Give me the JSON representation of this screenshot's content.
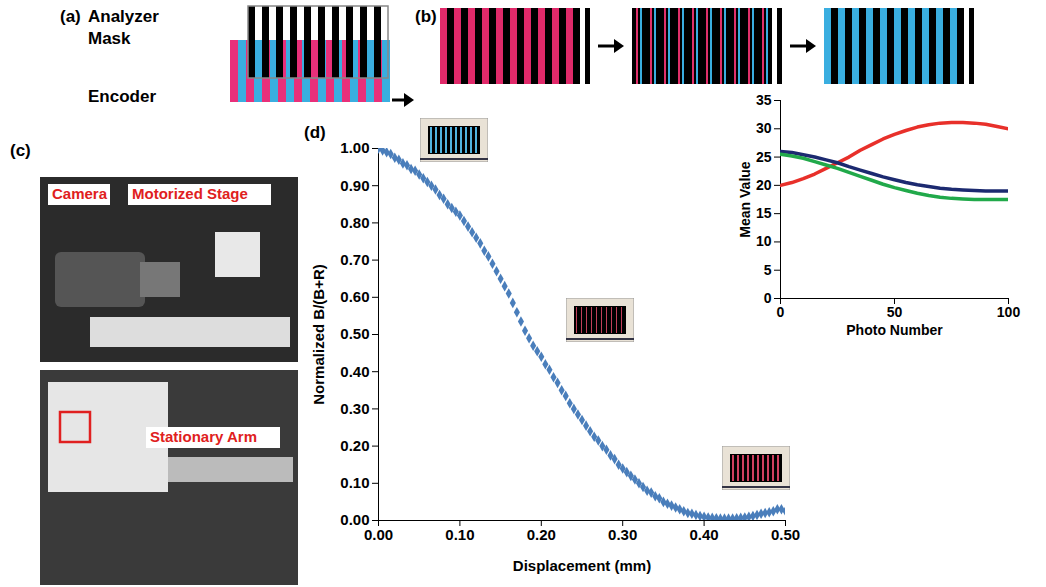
{
  "panels": {
    "a": {
      "letter": "(a)",
      "mask_label": "Analyzer Mask",
      "encoder_label": "Encoder"
    },
    "b": {
      "letter": "(b)"
    },
    "c": {
      "letter": "(c)",
      "labels": [
        "Camera",
        "Motorized Stage",
        "Stationary Arm"
      ]
    },
    "d": {
      "letter": "(d)"
    }
  },
  "chart_data": [
    {
      "type": "scatter",
      "x_label": "Displacement (mm)",
      "y_label": "Normalized B/(B+R)",
      "color": "#4a7ebb",
      "marker": "diamond",
      "grid": false,
      "xlim": [
        0,
        0.5
      ],
      "xticks": [
        {
          "value": 0,
          "label": "0.00"
        },
        {
          "value": 0.1,
          "label": "0.10"
        },
        {
          "value": 0.2,
          "label": "0.20"
        },
        {
          "value": 0.3,
          "label": "0.30"
        },
        {
          "value": 0.4,
          "label": "0.40"
        },
        {
          "value": 0.5,
          "label": "0.50"
        }
      ],
      "ylim": [
        0,
        1
      ],
      "yticks": [
        {
          "value": 0,
          "label": "0.00"
        },
        {
          "value": 0.1,
          "label": "0.10"
        },
        {
          "value": 0.2,
          "label": "0.20"
        },
        {
          "value": 0.3,
          "label": "0.30"
        },
        {
          "value": 0.4,
          "label": "0.40"
        },
        {
          "value": 0.5,
          "label": "0.50"
        },
        {
          "value": 0.6,
          "label": "0.60"
        },
        {
          "value": 0.7,
          "label": "0.70"
        },
        {
          "value": 0.8,
          "label": "0.80"
        },
        {
          "value": 0.9,
          "label": "0.90"
        },
        {
          "value": 1,
          "label": "1.00"
        }
      ],
      "x": [
        0,
        0.005,
        0.01,
        0.015,
        0.02,
        0.025,
        0.03,
        0.035,
        0.04,
        0.045,
        0.05,
        0.055,
        0.06,
        0.065,
        0.07,
        0.075,
        0.08,
        0.085,
        0.09,
        0.095,
        0.1,
        0.105,
        0.11,
        0.115,
        0.12,
        0.125,
        0.13,
        0.135,
        0.14,
        0.145,
        0.15,
        0.155,
        0.16,
        0.165,
        0.17,
        0.175,
        0.18,
        0.185,
        0.19,
        0.195,
        0.2,
        0.205,
        0.21,
        0.215,
        0.22,
        0.225,
        0.23,
        0.235,
        0.24,
        0.245,
        0.25,
        0.255,
        0.26,
        0.265,
        0.27,
        0.275,
        0.28,
        0.285,
        0.29,
        0.295,
        0.3,
        0.305,
        0.31,
        0.315,
        0.32,
        0.325,
        0.33,
        0.335,
        0.34,
        0.345,
        0.35,
        0.355,
        0.36,
        0.365,
        0.37,
        0.375,
        0.38,
        0.385,
        0.39,
        0.395,
        0.4,
        0.405,
        0.41,
        0.415,
        0.42,
        0.425,
        0.43,
        0.435,
        0.44,
        0.445,
        0.45,
        0.455,
        0.46,
        0.465,
        0.47,
        0.475,
        0.48,
        0.485,
        0.49,
        0.495,
        0.5
      ],
      "values": [
        1.0,
        0.995,
        0.99,
        0.985,
        0.975,
        0.97,
        0.96,
        0.955,
        0.945,
        0.94,
        0.93,
        0.92,
        0.91,
        0.9,
        0.89,
        0.875,
        0.865,
        0.85,
        0.84,
        0.83,
        0.82,
        0.805,
        0.79,
        0.775,
        0.76,
        0.745,
        0.725,
        0.71,
        0.69,
        0.67,
        0.65,
        0.63,
        0.61,
        0.585,
        0.56,
        0.535,
        0.51,
        0.49,
        0.47,
        0.455,
        0.44,
        0.42,
        0.405,
        0.385,
        0.37,
        0.35,
        0.335,
        0.315,
        0.3,
        0.285,
        0.27,
        0.255,
        0.24,
        0.225,
        0.215,
        0.2,
        0.19,
        0.175,
        0.165,
        0.15,
        0.14,
        0.13,
        0.12,
        0.11,
        0.1,
        0.09,
        0.08,
        0.075,
        0.065,
        0.06,
        0.05,
        0.045,
        0.04,
        0.035,
        0.03,
        0.025,
        0.02,
        0.018,
        0.015,
        0.012,
        0.01,
        0.008,
        0.007,
        0.006,
        0.005,
        0.005,
        0.005,
        0.005,
        0.006,
        0.007,
        0.008,
        0.01,
        0.012,
        0.015,
        0.018,
        0.02,
        0.022,
        0.025,
        0.03,
        0.03,
        0.025
      ]
    },
    {
      "type": "line",
      "x_label": "Photo Number",
      "y_label": "Mean Value",
      "grid": false,
      "xlim": [
        0,
        100
      ],
      "xticks": [
        0,
        50,
        100
      ],
      "ylim": [
        0,
        35
      ],
      "yticks": [
        0,
        5,
        10,
        15,
        20,
        25,
        30,
        35
      ],
      "x": [
        0,
        5,
        10,
        15,
        20,
        25,
        30,
        35,
        40,
        45,
        50,
        55,
        60,
        65,
        70,
        75,
        80,
        85,
        90,
        95,
        100
      ],
      "series": [
        {
          "color": "#e8302a",
          "values": [
            20,
            20.5,
            21.2,
            22,
            23,
            24,
            25,
            26.2,
            27.2,
            28.2,
            29,
            29.7,
            30.3,
            30.7,
            31,
            31.1,
            31.1,
            31,
            30.8,
            30.4,
            30
          ]
        },
        {
          "color": "#1c2a70",
          "values": [
            26,
            25.8,
            25.4,
            25,
            24.5,
            24,
            23.3,
            22.7,
            22.1,
            21.5,
            21,
            20.5,
            20.1,
            19.8,
            19.5,
            19.3,
            19.2,
            19.1,
            19,
            19,
            19
          ]
        },
        {
          "color": "#21a94a",
          "values": [
            25.5,
            25.2,
            24.8,
            24.2,
            23.6,
            23,
            22.3,
            21.6,
            20.9,
            20.2,
            19.6,
            19.1,
            18.6,
            18.2,
            17.9,
            17.7,
            17.6,
            17.5,
            17.5,
            17.5,
            17.5
          ]
        }
      ]
    }
  ]
}
